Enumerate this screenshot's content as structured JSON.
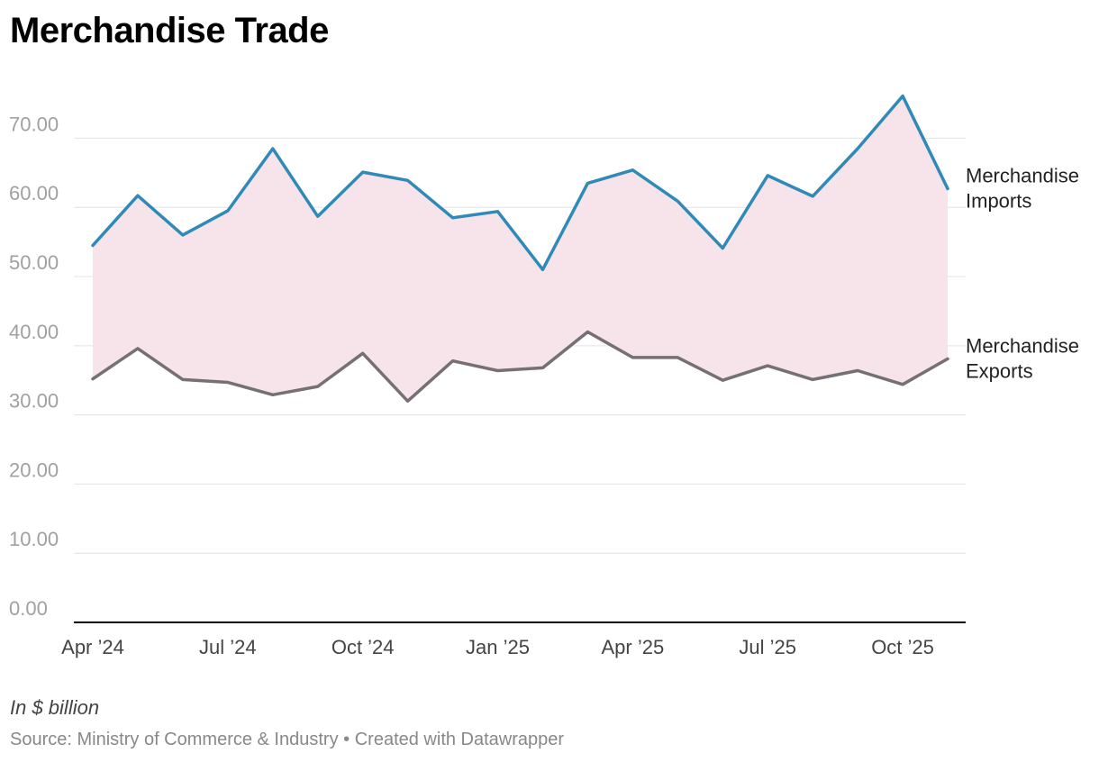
{
  "title": "Merchandise Trade",
  "unit_note": "In $ billion",
  "footer": {
    "source_label": "Source:",
    "source": "Ministry of Commerce & Industry",
    "separator": "•",
    "credit": "Created with Datawrapper"
  },
  "colors": {
    "imports": "#2f8ab8",
    "exports": "#757075",
    "fill": "#f7e4ea",
    "grid": "#e3e3e3",
    "baseline": "#000000"
  },
  "chart_data": {
    "type": "line",
    "x": [
      "2024-04",
      "2024-05",
      "2024-06",
      "2024-07",
      "2024-08",
      "2024-09",
      "2024-10",
      "2024-11",
      "2024-12",
      "2025-01",
      "2025-02",
      "2025-03",
      "2025-04",
      "2025-05",
      "2025-06",
      "2025-07",
      "2025-08",
      "2025-09",
      "2025-10",
      "2025-11"
    ],
    "x_tick_labels": [
      {
        "x": "2024-04",
        "label": "Apr ’24"
      },
      {
        "x": "2024-07",
        "label": "Jul ’24"
      },
      {
        "x": "2024-10",
        "label": "Oct ’24"
      },
      {
        "x": "2025-01",
        "label": "Jan ’25"
      },
      {
        "x": "2025-04",
        "label": "Apr ’25"
      },
      {
        "x": "2025-07",
        "label": "Jul ’25"
      },
      {
        "x": "2025-10",
        "label": "Oct ’25"
      }
    ],
    "y_ticks": [
      "0.00",
      "10.00",
      "20.00",
      "30.00",
      "40.00",
      "50.00",
      "60.00",
      "70.00"
    ],
    "ylim": [
      0,
      78
    ],
    "grid": true,
    "area_between_series": true,
    "series": [
      {
        "key": "imports",
        "name": "Merchandise Imports",
        "name_lines": [
          "Merchandise",
          "Imports"
        ],
        "values": [
          54.5,
          61.7,
          56.0,
          59.5,
          68.5,
          58.7,
          65.1,
          63.9,
          58.5,
          59.4,
          51.0,
          63.5,
          65.4,
          60.9,
          54.1,
          64.6,
          61.6,
          68.5,
          76.1,
          62.7
        ]
      },
      {
        "key": "exports",
        "name": "Merchandise Exports",
        "name_lines": [
          "Merchandise",
          "Exports"
        ],
        "values": [
          35.2,
          39.6,
          35.1,
          34.7,
          32.9,
          34.1,
          38.9,
          32.0,
          37.8,
          36.4,
          36.8,
          42.0,
          38.3,
          38.3,
          35.0,
          37.1,
          35.1,
          36.4,
          34.4,
          38.1
        ]
      }
    ]
  }
}
